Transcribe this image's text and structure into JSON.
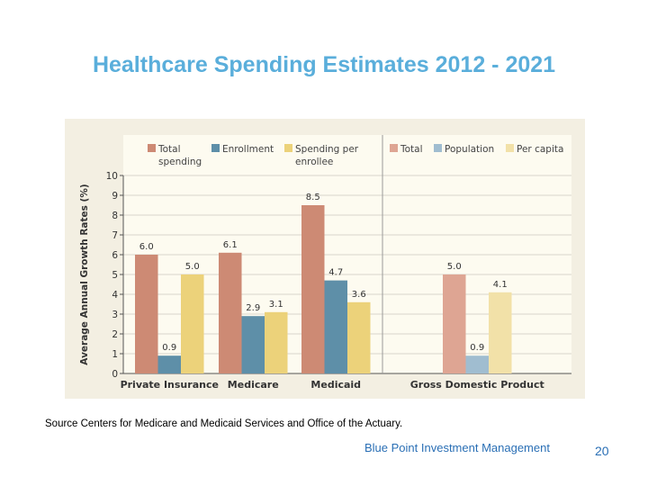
{
  "title": "Healthcare Spending Estimates 2012 - 2021",
  "source": "Source Centers for Medicare and Medicaid Services and Office of the Actuary.",
  "footer": "Blue Point Investment Management",
  "page_number": "20",
  "chart_data": {
    "type": "bar",
    "ylabel": "Average Annual Growth Rates (%)",
    "ylim": [
      0,
      10
    ],
    "yticks": [
      "0",
      "1",
      "2",
      "3",
      "4",
      "5",
      "6",
      "7",
      "8",
      "9",
      "10"
    ],
    "grid": true,
    "legend_placement": "top",
    "groups": [
      {
        "category": "Private Insurance",
        "panel": "left",
        "values": [
          6.0,
          0.9,
          5.0
        ],
        "labels": [
          "6.0",
          "0.9",
          "5.0"
        ]
      },
      {
        "category": "Medicare",
        "panel": "left",
        "values": [
          6.1,
          2.9,
          3.1
        ],
        "labels": [
          "6.1",
          "2.9",
          "3.1"
        ]
      },
      {
        "category": "Medicaid",
        "panel": "left",
        "values": [
          8.5,
          4.7,
          3.6
        ],
        "labels": [
          "8.5",
          "4.7",
          "3.6"
        ]
      },
      {
        "category": "Gross Domestic Product",
        "panel": "right",
        "values": [
          5.0,
          0.9,
          4.1
        ],
        "labels": [
          "5.0",
          "0.9",
          "4.1"
        ]
      }
    ],
    "legend_left": [
      {
        "name": "Total spending",
        "lines": [
          "Total",
          "spending"
        ],
        "color": "#cd8a74"
      },
      {
        "name": "Enrollment",
        "lines": [
          "Enrollment"
        ],
        "color": "#5e8fa8"
      },
      {
        "name": "Spending per enrollee",
        "lines": [
          "Spending per",
          "enrollee"
        ],
        "color": "#ecd27a"
      }
    ],
    "legend_right": [
      {
        "name": "Total",
        "lines": [
          "Total"
        ],
        "color": "#dea593"
      },
      {
        "name": "Population",
        "lines": [
          "Population"
        ],
        "color": "#a0bdd0"
      },
      {
        "name": "Per capita",
        "lines": [
          "Per capita"
        ],
        "color": "#f2e1a8"
      }
    ]
  }
}
